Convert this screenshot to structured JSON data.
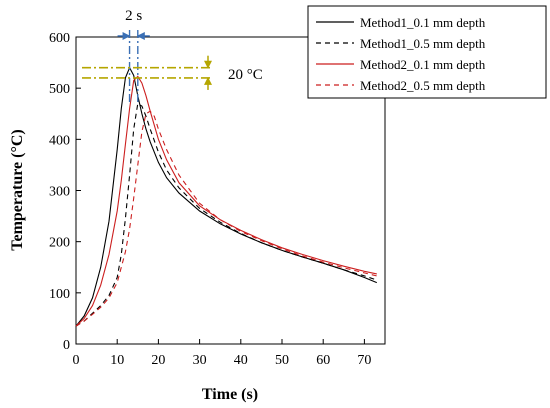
{
  "chart_data": {
    "type": "line",
    "xlabel": "Time (s)",
    "ylabel": "Temperature (°C)",
    "xlim": [
      0,
      75
    ],
    "ylim": [
      0,
      600
    ],
    "xticks": [
      0,
      10,
      20,
      30,
      40,
      50,
      60,
      70
    ],
    "yticks": [
      0,
      100,
      200,
      300,
      400,
      500,
      600
    ],
    "grid": false,
    "legend_position": "top-right",
    "series": [
      {
        "name": "Method1_0.1 mm depth",
        "color": "#000000",
        "style": "solid",
        "x": [
          0,
          2,
          4,
          6,
          8,
          10,
          11,
          12,
          13,
          14,
          15,
          16,
          17,
          18,
          20,
          22,
          25,
          30,
          35,
          40,
          45,
          50,
          55,
          60,
          65,
          70,
          73
        ],
        "y": [
          35,
          55,
          90,
          150,
          240,
          380,
          460,
          520,
          540,
          525,
          485,
          450,
          420,
          395,
          355,
          325,
          295,
          260,
          235,
          215,
          198,
          183,
          170,
          158,
          145,
          130,
          120
        ]
      },
      {
        "name": "Method1_0.5 mm depth",
        "color": "#000000",
        "style": "dashed",
        "x": [
          0,
          2,
          4,
          6,
          8,
          10,
          11,
          12,
          13,
          14,
          15,
          16,
          17,
          18,
          20,
          22,
          25,
          30,
          35,
          40,
          45,
          50,
          55,
          60,
          65,
          70,
          73
        ],
        "y": [
          35,
          45,
          60,
          75,
          95,
          130,
          175,
          245,
          330,
          420,
          470,
          465,
          445,
          420,
          375,
          340,
          305,
          265,
          238,
          216,
          198,
          183,
          170,
          158,
          145,
          133,
          125
        ]
      },
      {
        "name": "Method2_0.1 mm depth",
        "color": "#cc1f1f",
        "style": "solid",
        "x": [
          0,
          2,
          4,
          6,
          8,
          10,
          11,
          12,
          13,
          14,
          15,
          16,
          17,
          18,
          20,
          22,
          25,
          30,
          35,
          40,
          45,
          50,
          55,
          60,
          65,
          70,
          73
        ],
        "y": [
          35,
          50,
          75,
          115,
          175,
          260,
          320,
          390,
          460,
          515,
          523,
          510,
          485,
          455,
          400,
          360,
          315,
          270,
          243,
          222,
          204,
          188,
          175,
          163,
          152,
          142,
          137
        ]
      },
      {
        "name": "Method2_0.5 mm depth",
        "color": "#cc1f1f",
        "style": "dashed",
        "x": [
          0,
          2,
          4,
          6,
          8,
          10,
          12,
          13,
          14,
          15,
          16,
          17,
          18,
          19,
          20,
          22,
          25,
          30,
          35,
          40,
          45,
          50,
          55,
          60,
          65,
          70,
          73
        ],
        "y": [
          35,
          45,
          58,
          72,
          90,
          120,
          180,
          225,
          285,
          350,
          415,
          450,
          455,
          445,
          420,
          380,
          330,
          275,
          243,
          220,
          202,
          186,
          172,
          160,
          149,
          139,
          133
        ]
      }
    ],
    "annotations": {
      "time_gap_label": "2 s",
      "temp_gap_label": "20 °C",
      "arrow_color": "#3a6fb5",
      "guide_color": "#b5a600",
      "time_markers_x": [
        13,
        15
      ],
      "temp_markers_y": [
        540,
        520
      ]
    }
  }
}
